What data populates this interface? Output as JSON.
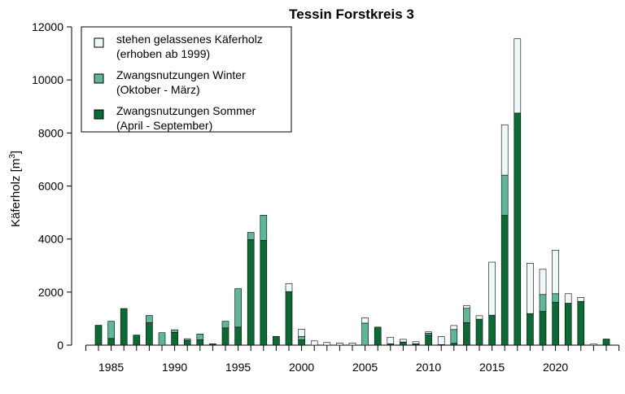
{
  "colors": {
    "summer": "#0c6b34",
    "winter": "#5fb699",
    "standing": "#eef8f8",
    "stroke": "#000000"
  },
  "chart_data": {
    "type": "bar",
    "stacked": true,
    "title": "Tessin Forstkreis 3",
    "ylabel_main": "Käferholz [m",
    "ylabel_sup": "3",
    "ylabel_close": "]",
    "xlabel": "",
    "ylim": [
      0,
      12000
    ],
    "yticks": [
      0,
      2000,
      4000,
      6000,
      8000,
      10000,
      12000
    ],
    "xlim": [
      1983,
      2025
    ],
    "xtick_labels": [
      1985,
      1990,
      1995,
      2000,
      2005,
      2010,
      2015,
      2020
    ],
    "legend": {
      "placement": "top-left",
      "entries": [
        {
          "key": "standing",
          "line1": "stehen gelassenes Käferholz",
          "line2": "(erhoben ab 1999)"
        },
        {
          "key": "winter",
          "line1": "Zwangsnutzungen Winter",
          "line2": "(Oktober - März)"
        },
        {
          "key": "summer",
          "line1": "Zwangsnutzungen Sommer",
          "line2": "(April - September)"
        }
      ]
    },
    "categories": [
      1984,
      1985,
      1986,
      1987,
      1988,
      1989,
      1990,
      1991,
      1992,
      1993,
      1994,
      1995,
      1996,
      1997,
      1998,
      1999,
      2000,
      2001,
      2002,
      2003,
      2004,
      2005,
      2006,
      2007,
      2008,
      2009,
      2010,
      2011,
      2012,
      2013,
      2014,
      2015,
      2016,
      2017,
      2018,
      2019,
      2020,
      2021,
      2022,
      2023,
      2024
    ],
    "series": [
      {
        "name": "Zwangsnutzungen Sommer (April - September)",
        "key": "summer",
        "values": [
          750,
          250,
          1380,
          380,
          850,
          0,
          480,
          170,
          200,
          50,
          650,
          680,
          3980,
          3950,
          330,
          2020,
          200,
          0,
          0,
          0,
          0,
          0,
          680,
          50,
          120,
          50,
          380,
          20,
          70,
          850,
          980,
          1130,
          4890,
          8750,
          1190,
          1270,
          1620,
          1580,
          1650,
          0,
          230
        ]
      },
      {
        "name": "Zwangsnutzungen Winter (Oktober - März)",
        "key": "winter",
        "values": [
          0,
          650,
          0,
          0,
          270,
          470,
          100,
          70,
          220,
          0,
          250,
          1450,
          270,
          950,
          0,
          0,
          130,
          0,
          0,
          0,
          0,
          830,
          0,
          0,
          0,
          0,
          70,
          0,
          520,
          540,
          0,
          0,
          1520,
          0,
          0,
          640,
          320,
          0,
          0,
          0,
          0
        ]
      },
      {
        "name": "stehen gelassenes Käferholz (erhoben ab 1999)",
        "key": "standing",
        "values": [
          0,
          0,
          0,
          0,
          0,
          0,
          0,
          0,
          0,
          0,
          0,
          0,
          0,
          0,
          0,
          300,
          270,
          160,
          100,
          80,
          80,
          200,
          0,
          250,
          100,
          80,
          50,
          300,
          150,
          100,
          130,
          2000,
          1900,
          2800,
          1900,
          950,
          1640,
          360,
          150,
          40,
          0
        ]
      }
    ]
  }
}
